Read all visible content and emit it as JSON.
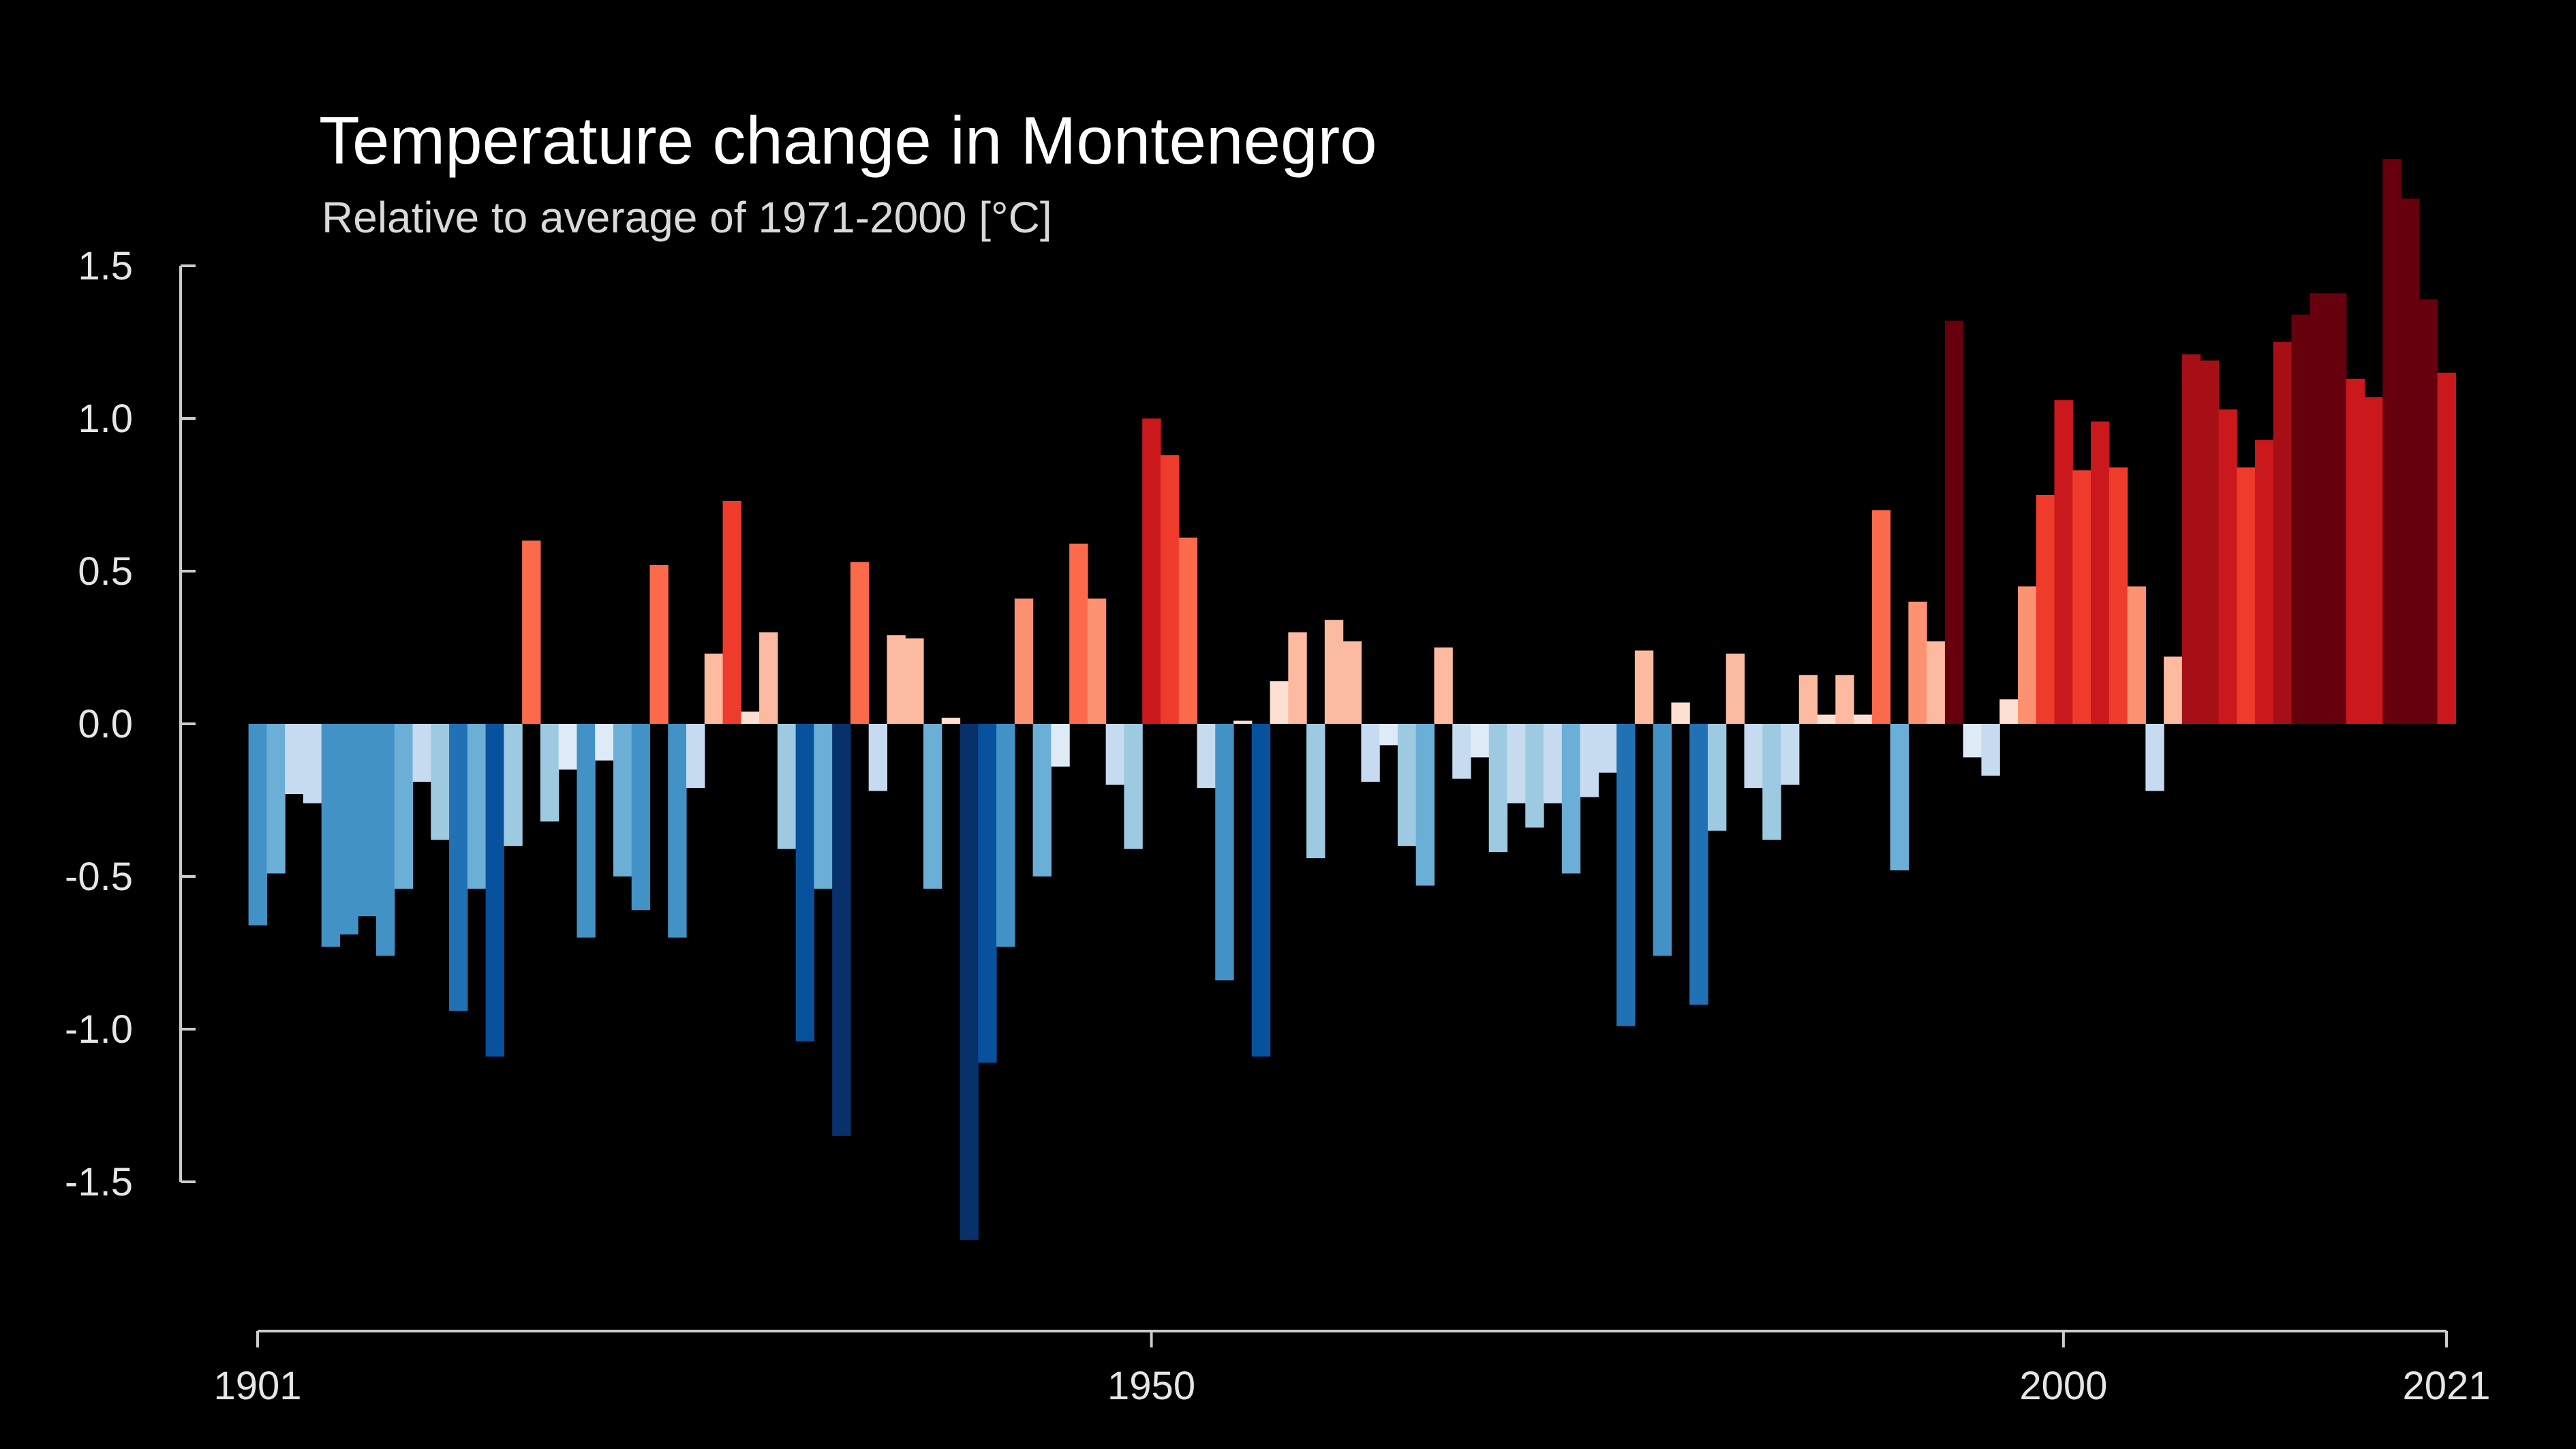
{
  "chart_data": {
    "type": "bar",
    "title": "Temperature change in Montenegro",
    "subtitle": "Relative to average of 1971-2000  [°C]",
    "xlabel": "",
    "ylabel": "",
    "x_start": 1901,
    "x_end": 2021,
    "x_ticks": [
      "1901",
      "1950",
      "2000",
      "2021"
    ],
    "y_ticks": [
      "1.5",
      "1.0",
      "0.5",
      "0.0",
      "-0.5",
      "-1.0",
      "-1.5"
    ],
    "ylim": [
      -1.7,
      1.85
    ],
    "grid": false,
    "legend": false,
    "color_scale": {
      "cold": [
        "#08306b",
        "#08519c",
        "#2171b5",
        "#4292c6",
        "#6baed6",
        "#9ecae1",
        "#c6dbef",
        "#deebf7"
      ],
      "warm": [
        "#fee0d2",
        "#fcbba1",
        "#fc9272",
        "#fb6a4a",
        "#ef3b2c",
        "#cb181d",
        "#a50f15",
        "#67000d"
      ]
    },
    "years": [
      1901,
      1902,
      1903,
      1904,
      1905,
      1906,
      1907,
      1908,
      1909,
      1910,
      1911,
      1912,
      1913,
      1914,
      1915,
      1916,
      1917,
      1918,
      1919,
      1920,
      1921,
      1922,
      1923,
      1924,
      1925,
      1926,
      1927,
      1928,
      1929,
      1930,
      1931,
      1932,
      1933,
      1934,
      1935,
      1936,
      1937,
      1938,
      1939,
      1940,
      1941,
      1942,
      1943,
      1944,
      1945,
      1946,
      1947,
      1948,
      1949,
      1950,
      1951,
      1952,
      1953,
      1954,
      1955,
      1956,
      1957,
      1958,
      1959,
      1960,
      1961,
      1962,
      1963,
      1964,
      1965,
      1966,
      1967,
      1968,
      1969,
      1970,
      1971,
      1972,
      1973,
      1974,
      1975,
      1976,
      1977,
      1978,
      1979,
      1980,
      1981,
      1982,
      1983,
      1984,
      1985,
      1986,
      1987,
      1988,
      1989,
      1990,
      1991,
      1992,
      1993,
      1994,
      1995,
      1996,
      1997,
      1998,
      1999,
      2000,
      2001,
      2002,
      2003,
      2004,
      2005,
      2006,
      2007,
      2008,
      2009,
      2010,
      2011,
      2012,
      2013,
      2014,
      2015,
      2016,
      2017,
      2018,
      2019,
      2020,
      2021
    ],
    "values": [
      -0.66,
      -0.49,
      -0.23,
      -0.26,
      -0.73,
      -0.69,
      -0.63,
      -0.76,
      -0.54,
      -0.19,
      -0.38,
      -0.94,
      -0.54,
      -1.09,
      -0.4,
      0.6,
      -0.32,
      -0.15,
      -0.7,
      -0.12,
      -0.5,
      -0.61,
      0.52,
      -0.7,
      -0.21,
      0.23,
      0.73,
      0.04,
      0.3,
      -0.41,
      -1.04,
      -0.54,
      -1.35,
      0.53,
      -0.22,
      0.29,
      0.28,
      -0.54,
      0.02,
      -1.69,
      -1.11,
      -0.73,
      0.41,
      -0.5,
      -0.14,
      0.59,
      0.41,
      -0.2,
      -0.41,
      1.0,
      0.88,
      0.61,
      -0.21,
      -0.84,
      0.01,
      -1.09,
      0.14,
      0.3,
      -0.44,
      0.34,
      0.27,
      -0.19,
      -0.07,
      -0.4,
      -0.53,
      0.25,
      -0.18,
      -0.11,
      -0.42,
      -0.26,
      -0.34,
      -0.26,
      -0.49,
      -0.24,
      -0.16,
      -0.99,
      0.24,
      -0.76,
      0.07,
      -0.92,
      -0.35,
      0.23,
      -0.21,
      -0.38,
      -0.2,
      0.16,
      0.03,
      0.16,
      0.03,
      0.7,
      -0.48,
      0.4,
      0.27,
      1.32,
      -0.11,
      -0.17,
      0.08,
      0.45,
      0.75,
      1.06,
      0.83,
      0.99,
      0.84,
      0.45,
      -0.22,
      0.22,
      1.21,
      1.19,
      1.03,
      0.84,
      0.93,
      1.25,
      1.34,
      1.41,
      1.41,
      1.13,
      1.07,
      1.85,
      1.72,
      1.39,
      1.15
    ]
  }
}
